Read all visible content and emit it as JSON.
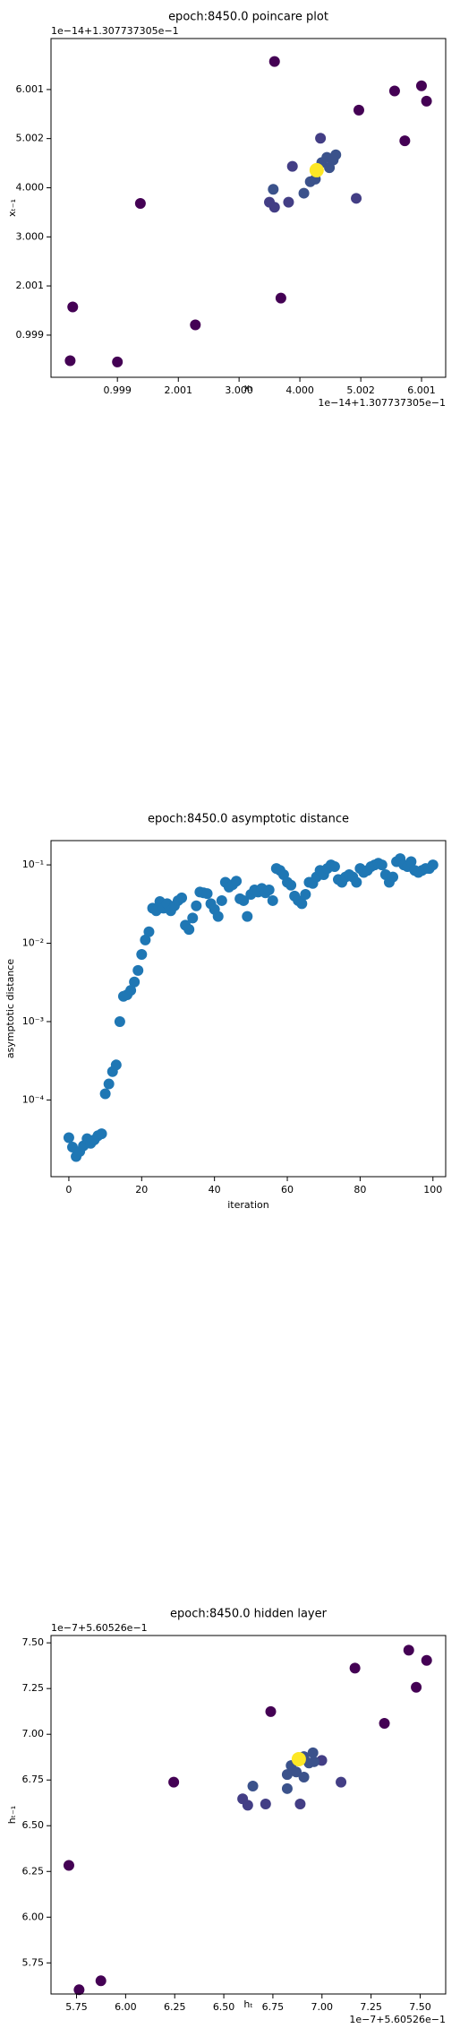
{
  "chart_data": [
    {
      "type": "scatter",
      "title": "epoch:8450.0 poincare plot",
      "xlabel": "xₜ",
      "ylabel": "xₜ₋₁",
      "x_offset": "1e−14+1.307737305e−1",
      "y_offset": "1e−14+1.307737305e−1",
      "x": [
        0.222,
        0.264,
        0.999,
        1.377,
        2.281,
        3.583,
        3.562,
        3.499,
        3.583,
        3.688,
        3.877,
        3.814,
        4.066,
        4.171,
        4.36,
        4.339,
        4.255,
        4.444,
        4.486,
        4.591,
        4.549,
        4.927,
        4.97,
        5.558,
        5.726,
        6.0,
        6.083,
        4.276
      ],
      "y": [
        0.478,
        1.572,
        0.452,
        3.681,
        1.207,
        6.572,
        3.968,
        3.707,
        3.603,
        1.754,
        4.437,
        3.707,
        3.89,
        4.124,
        4.515,
        5.01,
        4.176,
        4.619,
        4.41,
        4.671,
        4.567,
        3.785,
        5.582,
        5.973,
        4.957,
        6.077,
        5.765,
        4.358
      ],
      "colors": [
        "#440154",
        "#440154",
        "#440154",
        "#440154",
        "#440154",
        "#440154",
        "#3b528b",
        "#433e85",
        "#433e85",
        "#440154",
        "#433e85",
        "#433e85",
        "#3b528b",
        "#3b528b",
        "#3b528b",
        "#433e85",
        "#3b528b",
        "#3b528b",
        "#3b528b",
        "#3b528b",
        "#3b528b",
        "#433e85",
        "#440154",
        "#440154",
        "#440154",
        "#440154",
        "#440154",
        "#fde725"
      ],
      "xlim": [
        -0.093,
        6.398
      ],
      "ylim": [
        0.14,
        7.04
      ],
      "xticks": [
        0.999,
        2.001,
        {
          "value": 3,
          "label": "3.000"
        },
        {
          "value": 4,
          "label": "4.000"
        },
        5.002,
        6.001
      ],
      "yticks": [
        0.999,
        2.001,
        {
          "value": 3,
          "label": "3.000"
        },
        {
          "value": 4,
          "label": "4.000"
        },
        5.002,
        6.001
      ]
    },
    {
      "type": "scatter",
      "title": "epoch:8450.0 asymptotic distance",
      "xlabel": "iteration",
      "ylabel": "asymptotic distance",
      "yscale": "log",
      "color": "#1f77b4",
      "x": [
        0,
        1,
        2,
        3,
        4,
        5,
        6,
        7,
        8,
        9,
        10,
        11,
        12,
        13,
        14,
        15,
        16,
        17,
        18,
        19,
        20,
        21,
        22,
        23,
        24,
        25,
        26,
        27,
        28,
        29,
        30,
        31,
        32,
        33,
        34,
        35,
        36,
        37,
        38,
        39,
        40,
        41,
        42,
        43,
        44,
        45,
        46,
        47,
        48,
        49,
        50,
        51,
        52,
        53,
        54,
        55,
        56,
        57,
        58,
        59,
        60,
        61,
        62,
        63,
        64,
        65,
        66,
        67,
        68,
        69,
        70,
        71,
        72,
        73,
        74,
        75,
        76,
        77,
        78,
        79,
        80,
        81,
        82,
        83,
        84,
        85,
        86,
        87,
        88,
        89,
        90,
        91,
        92,
        93,
        94,
        95,
        96,
        97,
        98,
        99,
        100
      ],
      "y": [
        3.3e-05,
        2.5e-05,
        1.9e-05,
        2.2e-05,
        2.6e-05,
        3.2e-05,
        2.8e-05,
        3.1e-05,
        3.5e-05,
        3.7e-05,
        0.00012,
        0.00016,
        0.00023,
        0.00028,
        0.001,
        0.0021,
        0.0022,
        0.0025,
        0.0032,
        0.0045,
        0.0072,
        0.011,
        0.014,
        0.028,
        0.026,
        0.034,
        0.028,
        0.032,
        0.026,
        0.03,
        0.035,
        0.038,
        0.017,
        0.015,
        0.021,
        0.03,
        0.045,
        0.044,
        0.043,
        0.032,
        0.027,
        0.022,
        0.035,
        0.06,
        0.052,
        0.056,
        0.062,
        0.037,
        0.035,
        0.022,
        0.042,
        0.048,
        0.045,
        0.05,
        0.044,
        0.048,
        0.035,
        0.09,
        0.085,
        0.075,
        0.06,
        0.055,
        0.04,
        0.035,
        0.032,
        0.042,
        0.06,
        0.058,
        0.07,
        0.085,
        0.075,
        0.09,
        0.1,
        0.095,
        0.065,
        0.06,
        0.07,
        0.075,
        0.07,
        0.06,
        0.09,
        0.08,
        0.085,
        0.095,
        0.1,
        0.105,
        0.1,
        0.075,
        0.06,
        0.07,
        0.11,
        0.12,
        0.1,
        0.095,
        0.11,
        0.085,
        0.08,
        0.085,
        0.09,
        0.09,
        0.1
      ],
      "xlim": [
        -4.9,
        103.5
      ],
      "ylim": [
        1.05e-05,
        0.204
      ],
      "xticks": [
        0,
        20,
        40,
        60,
        80,
        100
      ],
      "yticks": [
        {
          "value": 0.0001,
          "label": "10⁻⁴"
        },
        {
          "value": 0.001,
          "label": "10⁻³"
        },
        {
          "value": 0.01,
          "label": "10⁻²"
        },
        {
          "value": 0.1,
          "label": "10⁻¹"
        }
      ]
    },
    {
      "type": "scatter",
      "title": "epoch:8450.0 hidden layer",
      "xlabel": "hₜ",
      "ylabel": "hₜ₋₁",
      "x_offset": "1e−7+5.60526e−1",
      "y_offset": "1e−7+5.60526e−1",
      "x": [
        5.711,
        5.763,
        5.874,
        6.245,
        6.596,
        6.622,
        6.648,
        6.713,
        6.739,
        6.823,
        6.823,
        6.843,
        6.869,
        6.908,
        6.934,
        6.954,
        6.999,
        6.889,
        6.908,
        6.96,
        7.097,
        7.168,
        7.318,
        7.442,
        7.48,
        7.533,
        6.882
      ],
      "y": [
        6.283,
        5.603,
        5.652,
        6.738,
        6.647,
        6.612,
        6.717,
        6.619,
        7.124,
        6.703,
        6.78,
        6.829,
        6.794,
        6.878,
        6.843,
        6.899,
        6.857,
        6.619,
        6.766,
        6.85,
        6.738,
        7.362,
        7.06,
        7.46,
        7.257,
        7.404,
        6.864
      ],
      "colors": [
        "#440154",
        "#440154",
        "#440154",
        "#440154",
        "#433e85",
        "#433e85",
        "#3b528b",
        "#433e85",
        "#440154",
        "#3b528b",
        "#3b528b",
        "#3b528b",
        "#3b528b",
        "#3b528b",
        "#3b528b",
        "#3b528b",
        "#433e85",
        "#433e85",
        "#3b528b",
        "#3b528b",
        "#433e85",
        "#440154",
        "#440154",
        "#440154",
        "#440154",
        "#440154",
        "#fde725"
      ],
      "xlim": [
        5.62,
        7.63
      ],
      "ylim": [
        5.58,
        7.54
      ],
      "xticks": [
        5.75,
        {
          "value": 6,
          "label": "6.00"
        },
        6.25,
        {
          "value": 6.5,
          "label": "6.50"
        },
        6.75,
        {
          "value": 7,
          "label": "7.00"
        },
        7.25,
        {
          "value": 7.5,
          "label": "7.50"
        }
      ],
      "yticks": [
        5.75,
        {
          "value": 6,
          "label": "6.00"
        },
        6.25,
        {
          "value": 6.5,
          "label": "6.50"
        },
        6.75,
        {
          "value": 7,
          "label": "7.00"
        },
        7.25,
        {
          "value": 7.5,
          "label": "7.50"
        }
      ]
    }
  ]
}
